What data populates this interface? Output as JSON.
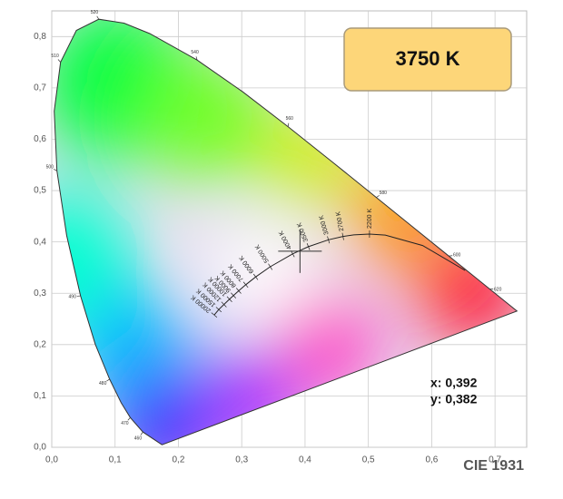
{
  "chart_data": {
    "type": "chromaticity",
    "title": "CIE 1931",
    "annotation": "3750 K",
    "xlim": [
      0,
      0.75
    ],
    "ylim": [
      0,
      0.85
    ],
    "xticks": [
      {
        "value": 0,
        "label": "0,0"
      },
      {
        "value": 0.1,
        "label": "0,1"
      },
      {
        "value": 0.2,
        "label": "0,2"
      },
      {
        "value": 0.3,
        "label": "0,3"
      },
      {
        "value": 0.4,
        "label": "0,4"
      },
      {
        "value": 0.5,
        "label": "0,5"
      },
      {
        "value": 0.6,
        "label": "0,6"
      },
      {
        "value": 0.7,
        "label": "0,7"
      }
    ],
    "yticks": [
      {
        "value": 0,
        "label": "0,0"
      },
      {
        "value": 0.1,
        "label": "0,1"
      },
      {
        "value": 0.2,
        "label": "0,2"
      },
      {
        "value": 0.3,
        "label": "0,3"
      },
      {
        "value": 0.4,
        "label": "0,4"
      },
      {
        "value": 0.5,
        "label": "0,5"
      },
      {
        "value": 0.6,
        "label": "0,6"
      },
      {
        "value": 0.7,
        "label": "0,7"
      },
      {
        "value": 0.8,
        "label": "0,8"
      }
    ],
    "grid": true,
    "spectral_locus": {
      "x": [
        0.1741,
        0.144,
        0.1241,
        0.1096,
        0.0913,
        0.0687,
        0.0454,
        0.0235,
        0.0082,
        0.0039,
        0.0139,
        0.0389,
        0.0743,
        0.1142,
        0.1547,
        0.2296,
        0.3016,
        0.3731,
        0.4441,
        0.5125,
        0.5752,
        0.627,
        0.6658,
        0.6915,
        0.7347
      ],
      "y": [
        0.005,
        0.0297,
        0.0578,
        0.0868,
        0.1327,
        0.2007,
        0.295,
        0.4127,
        0.5384,
        0.6548,
        0.7502,
        0.812,
        0.8338,
        0.8262,
        0.8059,
        0.7543,
        0.6923,
        0.6245,
        0.5547,
        0.4866,
        0.4242,
        0.3725,
        0.334,
        0.3083,
        0.2653
      ],
      "labels": [
        null,
        "460",
        "470",
        null,
        "480",
        null,
        "490",
        null,
        "500",
        null,
        "510",
        null,
        "520",
        null,
        null,
        "540",
        null,
        "560",
        null,
        "580",
        null,
        "600",
        null,
        "620",
        null
      ]
    },
    "planckian_locus": {
      "x": [
        0.6528,
        0.5857,
        0.5267,
        0.5018,
        0.477,
        0.4599,
        0.4369,
        0.4053,
        0.3805,
        0.3451,
        0.3221,
        0.3064,
        0.2952,
        0.2869,
        0.2807,
        0.2719,
        0.2637,
        0.2565
      ],
      "y": [
        0.3444,
        0.3931,
        0.4133,
        0.4153,
        0.4137,
        0.4106,
        0.4041,
        0.3907,
        0.3768,
        0.3516,
        0.3318,
        0.3166,
        0.3048,
        0.2956,
        0.2884,
        0.2782,
        0.2683,
        0.2577
      ],
      "labels": [
        null,
        null,
        null,
        "2200 K",
        null,
        "2700 K",
        "3000 K",
        "3500 K",
        "4000 K",
        "5000 K",
        "6000 K",
        "7000 K",
        "8000 K",
        "9000 K",
        "10000 K",
        "12000 K",
        "15000 K",
        "20000 K"
      ]
    },
    "point": {
      "x": 0.392,
      "y": 0.382,
      "x_label": "x: 0,392",
      "y_label": "y: 0,382"
    }
  }
}
